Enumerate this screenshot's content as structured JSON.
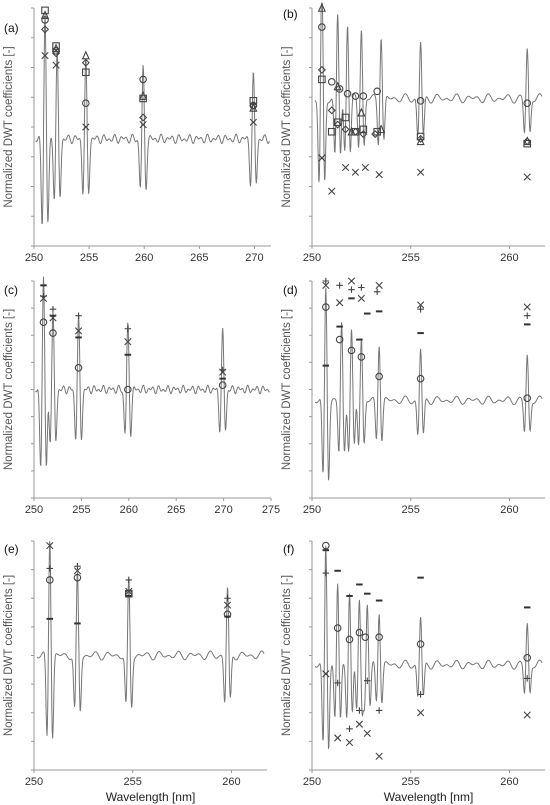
{
  "figure": {
    "ylabel": "Normalized DWT coefficients [-]",
    "xlabel": "Wavelength [nm]"
  },
  "chart_data": [
    {
      "panel": "(a)",
      "type": "line",
      "xlim": [
        250,
        271.5
      ],
      "xticks": [
        "250",
        "255",
        "260",
        "265",
        "270"
      ],
      "ylabel": "Normalized DWT coefficients [-]",
      "xlabel": "",
      "peaks": [
        251.0,
        252.1,
        254.7,
        259.9,
        269.9
      ],
      "markers": [
        {
          "symbol": "square",
          "points": [
            [
              251.0,
              0.99
            ],
            [
              252.0,
              0.84
            ],
            [
              254.7,
              0.73
            ],
            [
              259.9,
              0.62
            ],
            [
              269.9,
              0.61
            ]
          ]
        },
        {
          "symbol": "triangle",
          "points": [
            [
              251.0,
              0.97
            ],
            [
              252.0,
              0.83
            ],
            [
              254.7,
              0.8
            ],
            [
              259.9,
              0.63
            ],
            [
              269.9,
              0.58
            ]
          ]
        },
        {
          "symbol": "diamond",
          "points": [
            [
              251.0,
              0.91
            ],
            [
              252.0,
              0.81
            ],
            [
              254.7,
              0.77
            ],
            [
              259.9,
              0.54
            ],
            [
              269.9,
              0.59
            ]
          ]
        },
        {
          "symbol": "circle",
          "points": [
            [
              251.0,
              0.95
            ],
            [
              252.0,
              0.82
            ],
            [
              254.7,
              0.6
            ],
            [
              259.9,
              0.7
            ],
            [
              269.9,
              0.59
            ]
          ]
        },
        {
          "symbol": "x",
          "points": [
            [
              251.0,
              0.8
            ],
            [
              252.0,
              0.76
            ],
            [
              254.7,
              0.5
            ],
            [
              259.9,
              0.51
            ],
            [
              269.9,
              0.52
            ]
          ]
        }
      ]
    },
    {
      "panel": "(b)",
      "type": "line",
      "xlim": [
        250,
        261.8
      ],
      "xticks": [
        "250",
        "255",
        "260"
      ],
      "ylabel": "Normalized DWT coefficients [-]",
      "xlabel": "",
      "peaks": [
        250.5,
        251.3,
        251.8,
        252.5,
        253.5,
        255.5,
        260.9
      ],
      "markers": [
        {
          "symbol": "triangle",
          "points": [
            [
              250.5,
              1.0
            ],
            [
              251.3,
              0.67
            ],
            [
              252.0,
              0.48
            ],
            [
              252.5,
              0.56
            ],
            [
              253.5,
              0.49
            ],
            [
              255.5,
              0.44
            ],
            [
              260.9,
              0.44
            ]
          ]
        },
        {
          "symbol": "circle",
          "points": [
            [
              250.5,
              0.92
            ],
            [
              251.0,
              0.69
            ],
            [
              251.4,
              0.66
            ],
            [
              251.8,
              0.64
            ],
            [
              252.2,
              0.63
            ],
            [
              252.6,
              0.63
            ],
            [
              253.3,
              0.65
            ],
            [
              255.5,
              0.61
            ],
            [
              260.9,
              0.6
            ]
          ]
        },
        {
          "symbol": "diamond",
          "points": [
            [
              250.5,
              0.74
            ],
            [
              251.0,
              0.57
            ],
            [
              251.3,
              0.51
            ],
            [
              251.7,
              0.49
            ],
            [
              252.2,
              0.48
            ],
            [
              252.6,
              0.47
            ],
            [
              253.2,
              0.47
            ],
            [
              255.5,
              0.45
            ],
            [
              260.9,
              0.44
            ]
          ]
        },
        {
          "symbol": "square",
          "points": [
            [
              250.5,
              0.7
            ],
            [
              251.0,
              0.48
            ],
            [
              251.3,
              0.52
            ],
            [
              251.7,
              0.54
            ],
            [
              252.2,
              0.48
            ],
            [
              252.6,
              0.49
            ],
            [
              253.3,
              0.48
            ],
            [
              255.5,
              0.46
            ],
            [
              260.9,
              0.43
            ]
          ]
        },
        {
          "symbol": "x",
          "points": [
            [
              250.5,
              0.37
            ],
            [
              251.0,
              0.23
            ],
            [
              251.7,
              0.33
            ],
            [
              252.2,
              0.31
            ],
            [
              252.7,
              0.33
            ],
            [
              253.4,
              0.3
            ],
            [
              255.5,
              0.31
            ],
            [
              260.9,
              0.29
            ]
          ]
        }
      ]
    },
    {
      "panel": "(c)",
      "type": "line",
      "xlim": [
        250,
        275
      ],
      "xticks": [
        "250",
        "255",
        "260",
        "265",
        "270",
        "275"
      ],
      "ylabel": "Normalized DWT coefficients [-]",
      "xlabel": "",
      "peaks": [
        251.0,
        252.0,
        254.7,
        259.9,
        269.9
      ],
      "markers": [
        {
          "symbol": "minus",
          "points": [
            [
              251.0,
              0.98
            ],
            [
              252.0,
              0.84
            ],
            [
              254.7,
              0.74
            ],
            [
              259.9,
              0.66
            ],
            [
              269.9,
              0.55
            ]
          ]
        },
        {
          "symbol": "plus",
          "points": [
            [
              251.0,
              0.93
            ],
            [
              252.0,
              0.87
            ],
            [
              254.7,
              0.84
            ],
            [
              259.9,
              0.78
            ],
            [
              269.9,
              0.59
            ]
          ]
        },
        {
          "symbol": "x",
          "points": [
            [
              251.0,
              0.92
            ],
            [
              252.0,
              0.83
            ],
            [
              254.7,
              0.77
            ],
            [
              259.9,
              0.72
            ],
            [
              269.9,
              0.58
            ]
          ]
        },
        {
          "symbol": "circle",
          "points": [
            [
              251.0,
              0.81
            ],
            [
              252.0,
              0.76
            ],
            [
              254.7,
              0.6
            ],
            [
              259.9,
              0.5
            ],
            [
              269.9,
              0.52
            ]
          ]
        }
      ]
    },
    {
      "panel": "(d)",
      "type": "line",
      "xlim": [
        250,
        261.8
      ],
      "xticks": [
        "250",
        "255",
        "260"
      ],
      "ylabel": "Normalized DWT coefficients [-]",
      "xlabel": "",
      "peaks": [
        250.7,
        251.5,
        252.0,
        252.5,
        253.4,
        255.5,
        260.9
      ],
      "markers": [
        {
          "symbol": "plus",
          "points": [
            [
              250.7,
              1.0
            ],
            [
              251.4,
              0.98
            ],
            [
              252.0,
              0.96
            ],
            [
              252.5,
              0.97
            ],
            [
              253.3,
              0.95
            ],
            [
              255.5,
              0.87
            ],
            [
              260.9,
              0.84
            ]
          ]
        },
        {
          "symbol": "x",
          "points": [
            [
              250.7,
              0.98
            ],
            [
              251.4,
              0.9
            ],
            [
              252.0,
              1.0
            ],
            [
              252.5,
              0.92
            ],
            [
              253.4,
              0.98
            ],
            [
              255.5,
              0.89
            ],
            [
              260.9,
              0.88
            ]
          ]
        },
        {
          "symbol": "minus",
          "points": [
            [
              250.7,
              0.61
            ],
            [
              251.4,
              0.79
            ],
            [
              252.0,
              0.92
            ],
            [
              252.4,
              0.73
            ],
            [
              252.8,
              0.85
            ],
            [
              253.4,
              0.86
            ],
            [
              255.5,
              0.76
            ],
            [
              260.9,
              0.8
            ]
          ]
        },
        {
          "symbol": "circle",
          "points": [
            [
              250.7,
              0.88
            ],
            [
              251.4,
              0.73
            ],
            [
              252.0,
              0.68
            ],
            [
              252.5,
              0.65
            ],
            [
              253.4,
              0.56
            ],
            [
              255.5,
              0.55
            ],
            [
              260.9,
              0.46
            ]
          ]
        }
      ]
    },
    {
      "panel": "(e)",
      "type": "line",
      "xlim": [
        250,
        261.8
      ],
      "xticks": [
        "250",
        "255",
        "260"
      ],
      "ylabel": "Normalized DWT coefficients [-]",
      "xlabel": "Wavelength [nm]",
      "peaks": [
        250.8,
        252.2,
        254.8,
        259.8
      ],
      "markers": [
        {
          "symbol": "x",
          "points": [
            [
              250.8,
              0.98
            ],
            [
              252.2,
              0.87
            ],
            [
              254.8,
              0.78
            ],
            [
              259.8,
              0.72
            ]
          ]
        },
        {
          "symbol": "plus",
          "points": [
            [
              250.8,
              0.88
            ],
            [
              252.2,
              0.89
            ],
            [
              254.8,
              0.83
            ],
            [
              259.8,
              0.75
            ]
          ]
        },
        {
          "symbol": "circle",
          "points": [
            [
              250.8,
              0.83
            ],
            [
              252.2,
              0.84
            ],
            [
              254.8,
              0.77
            ],
            [
              259.8,
              0.68
            ]
          ]
        },
        {
          "symbol": "minus",
          "points": [
            [
              250.8,
              0.66
            ],
            [
              252.2,
              0.64
            ],
            [
              254.8,
              0.76
            ],
            [
              259.8,
              0.67
            ]
          ]
        },
        {
          "symbol": "square",
          "points": [
            [
              254.8,
              0.77
            ]
          ]
        }
      ]
    },
    {
      "panel": "(f)",
      "type": "line",
      "xlim": [
        250,
        261.8
      ],
      "xticks": [
        "250",
        "255",
        "260"
      ],
      "ylabel": "Normalized DWT coefficients [-]",
      "xlabel": "Wavelength [nm]",
      "peaks": [
        250.7,
        251.3,
        251.9,
        252.4,
        252.8,
        253.4,
        255.5,
        260.9
      ],
      "markers": [
        {
          "symbol": "circle",
          "points": [
            [
              250.7,
              0.98
            ],
            [
              251.3,
              0.62
            ],
            [
              251.9,
              0.57
            ],
            [
              252.4,
              0.6
            ],
            [
              252.7,
              0.58
            ],
            [
              253.4,
              0.58
            ],
            [
              255.5,
              0.55
            ],
            [
              260.9,
              0.49
            ]
          ]
        },
        {
          "symbol": "minus",
          "points": [
            [
              250.7,
              0.96
            ],
            [
              251.3,
              0.87
            ],
            [
              251.9,
              0.76
            ],
            [
              252.4,
              0.81
            ],
            [
              252.8,
              0.77
            ],
            [
              253.4,
              0.74
            ],
            [
              255.5,
              0.84
            ],
            [
              260.9,
              0.71
            ]
          ]
        },
        {
          "symbol": "plus",
          "points": [
            [
              250.7,
              0.86
            ],
            [
              251.3,
              0.38
            ],
            [
              251.9,
              0.18
            ],
            [
              252.4,
              0.26
            ],
            [
              252.8,
              0.39
            ],
            [
              253.4,
              0.26
            ],
            [
              255.5,
              0.33
            ],
            [
              260.9,
              0.4
            ]
          ]
        },
        {
          "symbol": "x",
          "points": [
            [
              250.7,
              0.42
            ],
            [
              251.3,
              0.14
            ],
            [
              251.9,
              0.12
            ],
            [
              252.4,
              0.2
            ],
            [
              252.8,
              0.16
            ],
            [
              253.4,
              0.06
            ],
            [
              255.5,
              0.25
            ],
            [
              260.9,
              0.24
            ]
          ]
        }
      ]
    }
  ]
}
